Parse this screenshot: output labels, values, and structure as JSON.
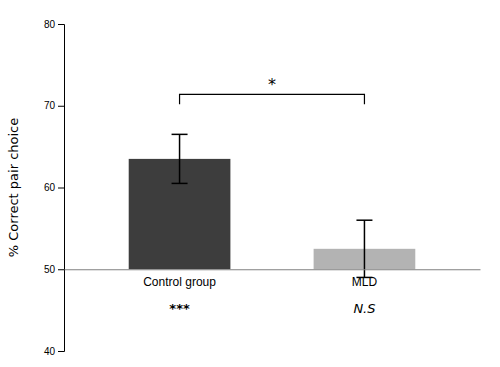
{
  "chart_data": {
    "type": "bar",
    "categories": [
      "Control group",
      "MLD"
    ],
    "values": [
      63.5,
      52.5
    ],
    "errors": [
      3.0,
      3.5
    ],
    "baseline": 50,
    "colors": [
      "#3d3d3d",
      "#b3b3b3"
    ],
    "ylabel": "% Correct pair choice",
    "ylim": [
      40,
      80
    ],
    "yticks": [
      40,
      50,
      60,
      70,
      80
    ],
    "annotations": [
      {
        "text": "***",
        "category": "Control group"
      },
      {
        "text": "N.S",
        "category": "MLD"
      },
      {
        "text": "*",
        "categories": [
          "Control group",
          "MLD"
        ]
      }
    ]
  }
}
